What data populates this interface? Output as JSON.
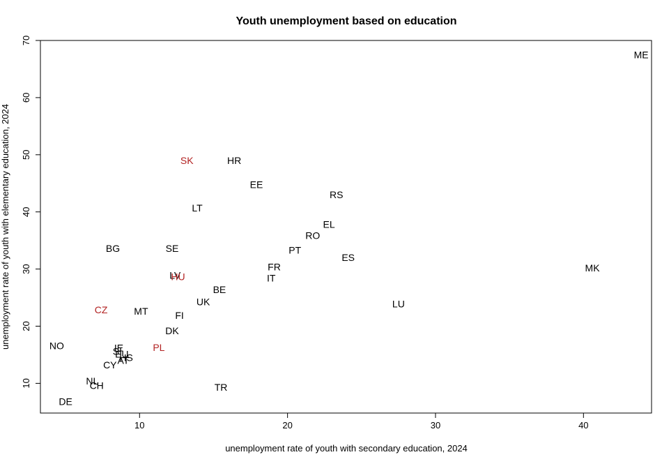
{
  "chart_data": {
    "type": "scatter",
    "title": "Youth unemployment based on education",
    "xlabel": "unemployment rate of youth with secondary education, 2024",
    "ylabel": "unemployment rate of youth with elementary education, 2024",
    "xlim": [
      3.3,
      44.6
    ],
    "ylim": [
      4.8,
      70.0
    ],
    "xticks": [
      10,
      20,
      30,
      40
    ],
    "yticks": [
      10,
      20,
      30,
      40,
      50,
      60,
      70
    ],
    "grid": false,
    "marker": "text-label",
    "colors": {
      "default": "#000000",
      "highlight": "#b22222"
    },
    "points": [
      {
        "label": "ME",
        "x": 43.9,
        "y": 67.5,
        "highlight": false
      },
      {
        "label": "SK",
        "x": 13.2,
        "y": 49.0,
        "highlight": true
      },
      {
        "label": "HR",
        "x": 16.4,
        "y": 49.0,
        "highlight": false
      },
      {
        "label": "EE",
        "x": 17.9,
        "y": 44.8,
        "highlight": false
      },
      {
        "label": "RS",
        "x": 23.3,
        "y": 43.0,
        "highlight": false
      },
      {
        "label": "LT",
        "x": 13.9,
        "y": 40.7,
        "highlight": false
      },
      {
        "label": "EL",
        "x": 22.8,
        "y": 37.8,
        "highlight": false
      },
      {
        "label": "RO",
        "x": 21.7,
        "y": 35.9,
        "highlight": false
      },
      {
        "label": "BG",
        "x": 8.2,
        "y": 33.6,
        "highlight": false
      },
      {
        "label": "SE",
        "x": 12.2,
        "y": 33.6,
        "highlight": false
      },
      {
        "label": "PT",
        "x": 20.5,
        "y": 33.3,
        "highlight": false
      },
      {
        "label": "ES",
        "x": 24.1,
        "y": 32.0,
        "highlight": false
      },
      {
        "label": "FR",
        "x": 19.1,
        "y": 30.4,
        "highlight": false
      },
      {
        "label": "MK",
        "x": 40.6,
        "y": 30.2,
        "highlight": false
      },
      {
        "label": "LV",
        "x": 12.4,
        "y": 28.9,
        "highlight": false
      },
      {
        "label": "HU",
        "x": 12.6,
        "y": 28.7,
        "highlight": true
      },
      {
        "label": "IT",
        "x": 18.9,
        "y": 28.4,
        "highlight": false
      },
      {
        "label": "BE",
        "x": 15.4,
        "y": 26.4,
        "highlight": false
      },
      {
        "label": "UK",
        "x": 14.3,
        "y": 24.3,
        "highlight": false
      },
      {
        "label": "LU",
        "x": 27.5,
        "y": 23.9,
        "highlight": false
      },
      {
        "label": "CZ",
        "x": 7.4,
        "y": 22.9,
        "highlight": true
      },
      {
        "label": "MT",
        "x": 10.1,
        "y": 22.6,
        "highlight": false
      },
      {
        "label": "FI",
        "x": 12.7,
        "y": 21.9,
        "highlight": false
      },
      {
        "label": "DK",
        "x": 12.2,
        "y": 19.2,
        "highlight": false
      },
      {
        "label": "NO",
        "x": 4.4,
        "y": 16.6,
        "highlight": false
      },
      {
        "label": "PL",
        "x": 11.3,
        "y": 16.3,
        "highlight": true
      },
      {
        "label": "IE",
        "x": 8.6,
        "y": 16.2,
        "highlight": false
      },
      {
        "label": "SI",
        "x": 8.5,
        "y": 15.6,
        "highlight": false
      },
      {
        "label": "EU",
        "x": 8.8,
        "y": 15.1,
        "highlight": false
      },
      {
        "label": "HS",
        "x": 9.1,
        "y": 14.5,
        "highlight": false
      },
      {
        "label": "AT",
        "x": 8.9,
        "y": 14.0,
        "highlight": false
      },
      {
        "label": "CY",
        "x": 8.0,
        "y": 13.2,
        "highlight": false
      },
      {
        "label": "NL",
        "x": 6.8,
        "y": 10.4,
        "highlight": false
      },
      {
        "label": "CH",
        "x": 7.1,
        "y": 9.6,
        "highlight": false
      },
      {
        "label": "TR",
        "x": 15.5,
        "y": 9.3,
        "highlight": false
      },
      {
        "label": "DE",
        "x": 5.0,
        "y": 6.8,
        "highlight": false
      }
    ]
  }
}
